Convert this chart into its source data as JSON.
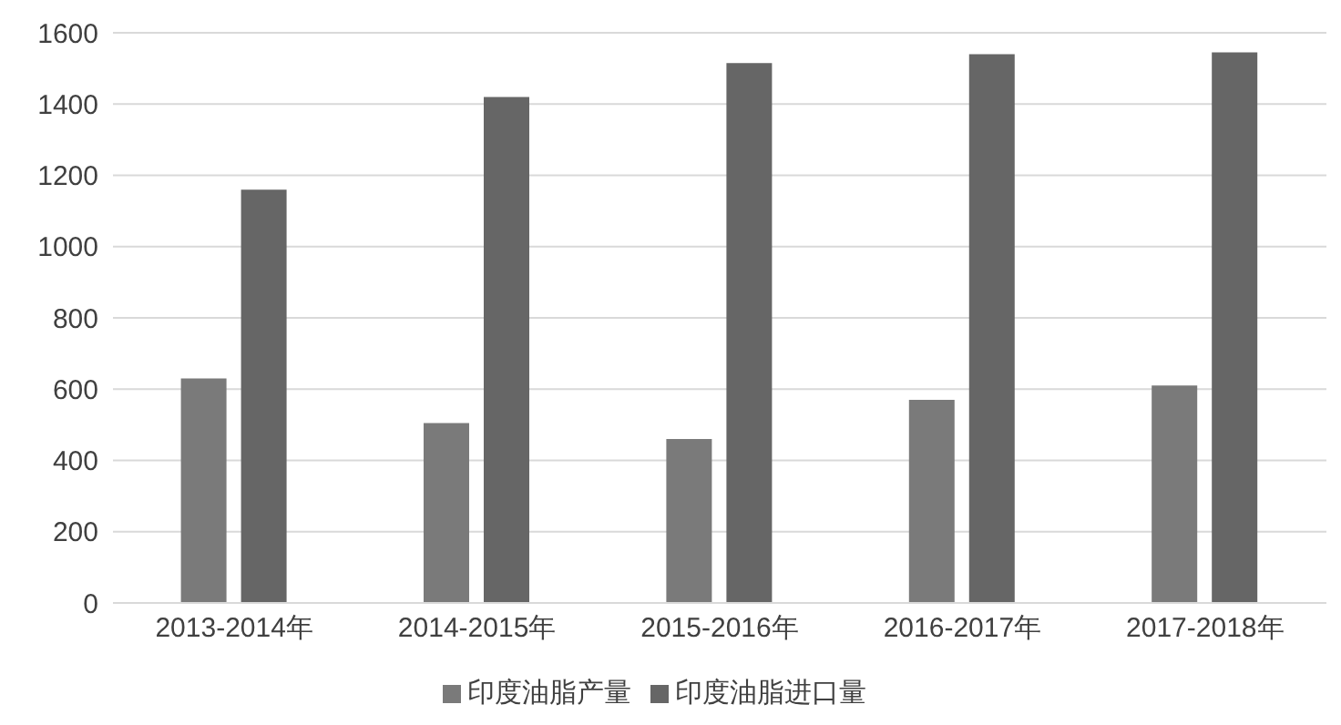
{
  "chart_data": {
    "type": "bar",
    "categories": [
      "2013-2014年",
      "2014-2015年",
      "2015-2016年",
      "2016-2017年",
      "2017-2018年"
    ],
    "series": [
      {
        "name": "印度油脂产量",
        "color": "#7a7a7a",
        "values": [
          630,
          505,
          460,
          570,
          610
        ]
      },
      {
        "name": "印度油脂进口量",
        "color": "#666666",
        "values": [
          1160,
          1420,
          1515,
          1540,
          1545
        ]
      }
    ],
    "ylim": [
      0,
      1600
    ],
    "yticks": [
      0,
      200,
      400,
      600,
      800,
      1000,
      1200,
      1400,
      1600
    ],
    "grid": "y",
    "legend": "bottom"
  }
}
